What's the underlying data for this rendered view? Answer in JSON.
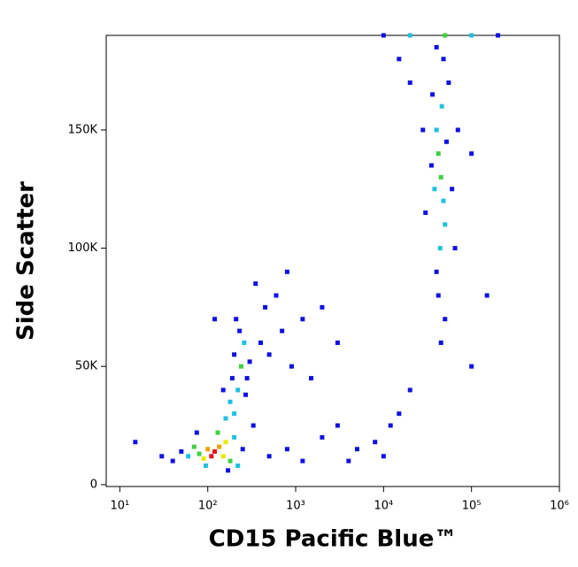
{
  "chart_data": {
    "type": "scatter",
    "x_label": "CD15 Pacific Blue™",
    "y_label": "Side Scatter",
    "xscale": "log",
    "xlim": [
      7,
      1000000
    ],
    "xticks": [
      {
        "value": 10,
        "label": "10¹"
      },
      {
        "value": 100,
        "label": "10²"
      },
      {
        "value": 1000,
        "label": "10³"
      },
      {
        "value": 10000,
        "label": "10⁴"
      },
      {
        "value": 100000,
        "label": "10⁵"
      },
      {
        "value": 1000000,
        "label": "10⁶"
      }
    ],
    "ylim": [
      -800,
      190000
    ],
    "yticks": [
      0,
      {
        "value": 50000,
        "label": "50K"
      },
      {
        "value": 100000,
        "label": "100K"
      },
      {
        "value": 150000,
        "label": "150K"
      }
    ],
    "x": [
      120,
      110,
      135,
      100,
      150,
      90,
      160,
      80,
      180,
      70,
      200,
      60,
      130,
      95,
      50,
      40,
      220,
      250,
      30,
      15,
      170,
      75,
      200,
      220,
      240,
      180,
      260,
      200,
      280,
      160,
      230,
      300,
      190,
      270,
      210,
      150,
      330,
      400,
      500,
      700,
      900,
      1200,
      600,
      2000,
      450,
      3000,
      800,
      1500,
      350,
      120,
      2000,
      5000,
      8000,
      12000,
      15000,
      4000,
      20000,
      800,
      1200,
      3000,
      10000,
      500,
      45000,
      42000,
      48000,
      40000,
      50000,
      38000,
      46000,
      44000,
      52000,
      35000,
      55000,
      40000,
      48000,
      30000,
      60000,
      42000,
      50000,
      36000,
      65000,
      45000,
      28000,
      40000,
      70000,
      15000,
      100000,
      20000,
      150000,
      100000,
      20000,
      50000,
      100000,
      10000,
      200000
    ],
    "values": [
      14000,
      12000,
      16000,
      15000,
      12000,
      11000,
      18000,
      13000,
      10000,
      16000,
      20000,
      12000,
      22000,
      8000,
      14000,
      10000,
      8000,
      15000,
      12000,
      18000,
      6000,
      22000,
      30000,
      40000,
      50000,
      35000,
      60000,
      55000,
      45000,
      28000,
      65000,
      52000,
      45000,
      38000,
      70000,
      40000,
      25000,
      60000,
      55000,
      65000,
      50000,
      70000,
      80000,
      75000,
      75000,
      60000,
      90000,
      45000,
      85000,
      70000,
      20000,
      15000,
      18000,
      25000,
      30000,
      10000,
      40000,
      15000,
      10000,
      25000,
      12000,
      12000,
      130000,
      140000,
      120000,
      150000,
      110000,
      125000,
      160000,
      100000,
      145000,
      135000,
      170000,
      90000,
      180000,
      115000,
      125000,
      80000,
      70000,
      165000,
      100000,
      60000,
      150000,
      185000,
      150000,
      180000,
      140000,
      170000,
      80000,
      50000,
      190000,
      190000,
      190000,
      190000,
      190000
    ],
    "colors": [
      "#e8141e",
      "#e8141e",
      "#f0a000",
      "#f0a000",
      "#e8e800",
      "#e8e800",
      "#e8e800",
      "#40d040",
      "#40d040",
      "#40d040",
      "#20c0e0",
      "#20c0e0",
      "#40d040",
      "#20c0e0",
      "#1010e0",
      "#1010e0",
      "#20c0e0",
      "#1010e0",
      "#1010e0",
      "#1010e0",
      "#1010e0",
      "#1010e0",
      "#20c0e0",
      "#20c0e0",
      "#40d040",
      "#20c0e0",
      "#20c0e0",
      "#1010e0",
      "#1010e0",
      "#20c0e0",
      "#1010e0",
      "#1010e0",
      "#1010e0",
      "#1010e0",
      "#1010e0",
      "#1010e0",
      "#1010e0",
      "#1010e0",
      "#1010e0",
      "#1010e0",
      "#1010e0",
      "#1010e0",
      "#1010e0",
      "#1010e0",
      "#1010e0",
      "#1010e0",
      "#1010e0",
      "#1010e0",
      "#1010e0",
      "#1010e0",
      "#1010e0",
      "#1010e0",
      "#1010e0",
      "#1010e0",
      "#1010e0",
      "#1010e0",
      "#1010e0",
      "#1010e0",
      "#1010e0",
      "#1010e0",
      "#1010e0",
      "#1010e0",
      "#40d040",
      "#40d040",
      "#20c0e0",
      "#20c0e0",
      "#20c0e0",
      "#20c0e0",
      "#20c0e0",
      "#20c0e0",
      "#1010e0",
      "#1010e0",
      "#1010e0",
      "#1010e0",
      "#1010e0",
      "#1010e0",
      "#1010e0",
      "#1010e0",
      "#1010e0",
      "#1010e0",
      "#1010e0",
      "#1010e0",
      "#1010e0",
      "#1010e0",
      "#1010e0",
      "#1010e0",
      "#1010e0",
      "#1010e0",
      "#1010e0",
      "#1010e0",
      "#20c0e0",
      "#40d040",
      "#20c0e0",
      "#1010e0",
      "#1010e0"
    ]
  }
}
